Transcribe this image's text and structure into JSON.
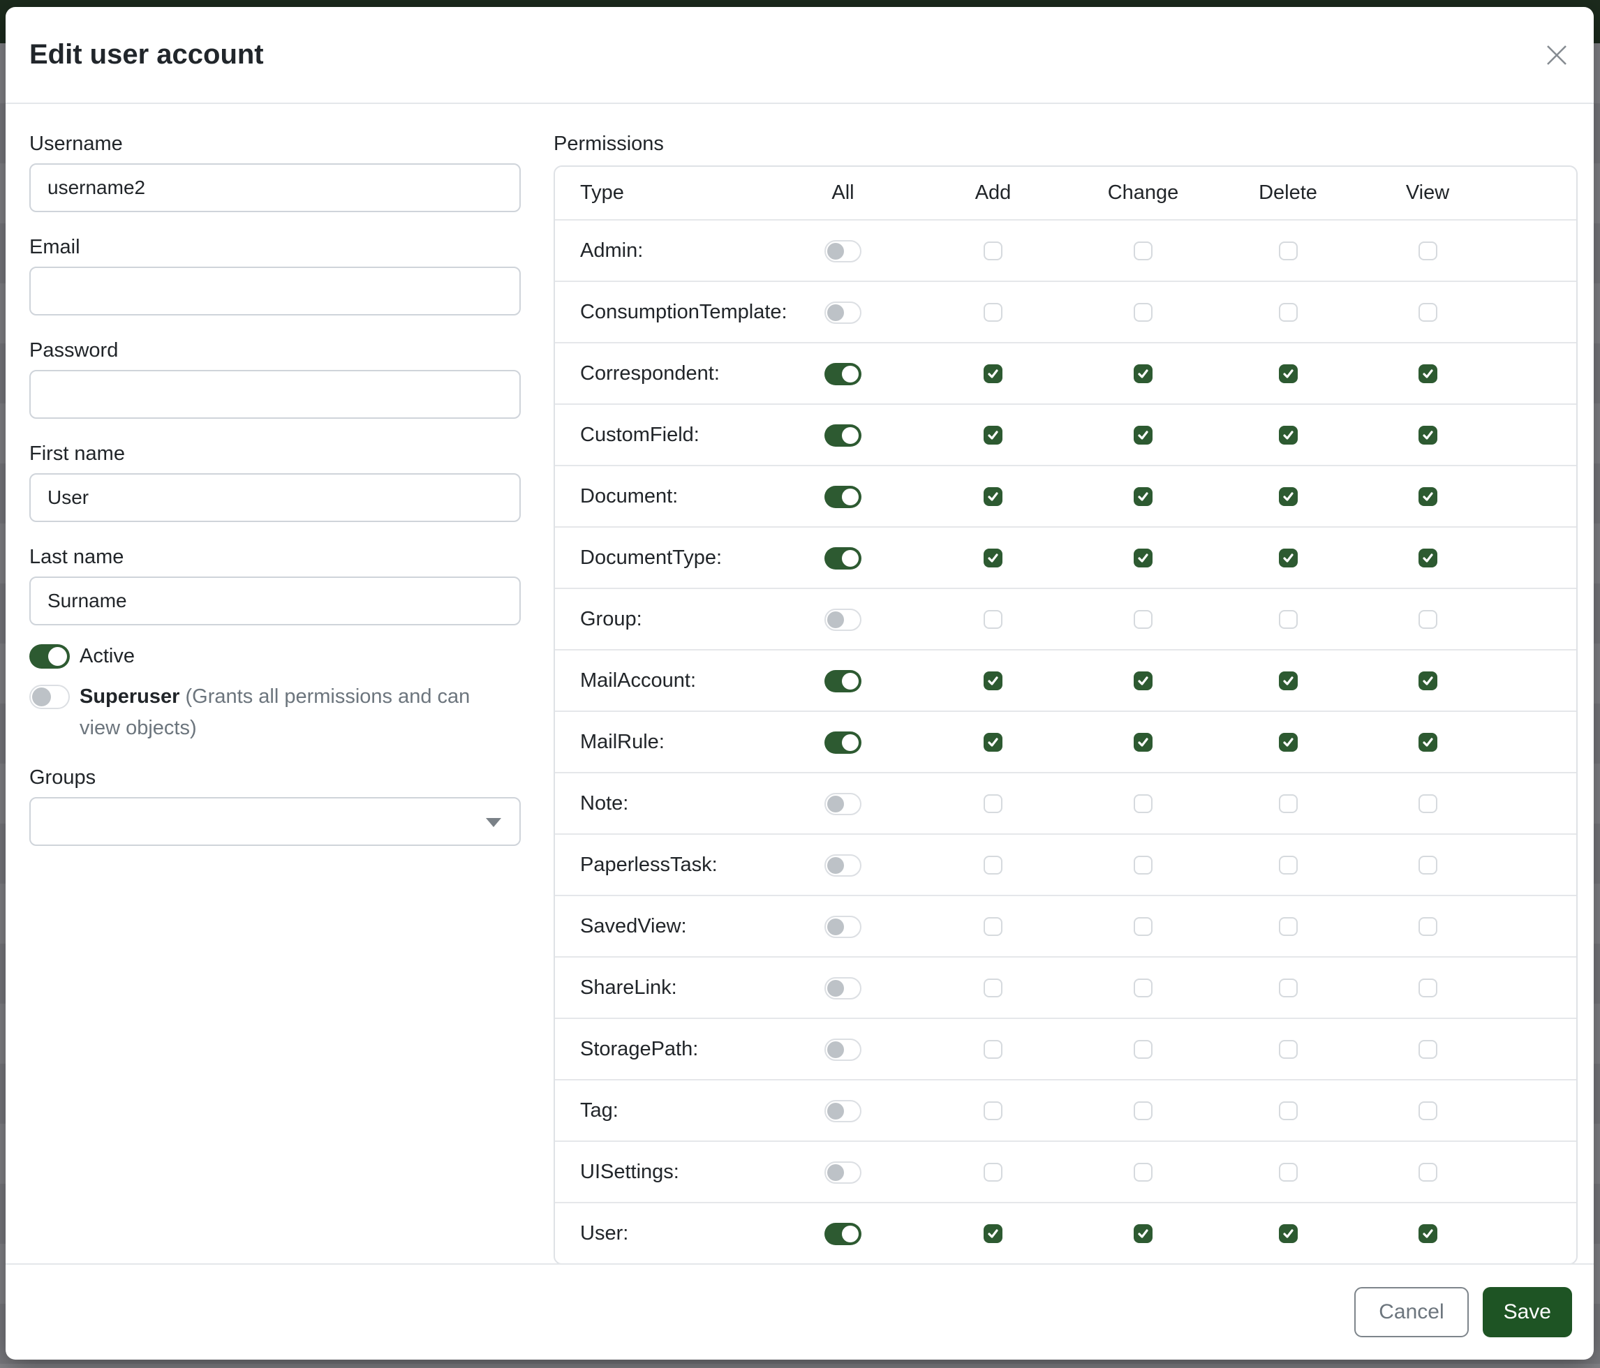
{
  "modal": {
    "title": "Edit user account"
  },
  "form": {
    "username": {
      "label": "Username",
      "value": "username2"
    },
    "email": {
      "label": "Email",
      "value": ""
    },
    "password": {
      "label": "Password",
      "value": ""
    },
    "first_name": {
      "label": "First name",
      "value": "User"
    },
    "last_name": {
      "label": "Last name",
      "value": "Surname"
    },
    "active": {
      "label": "Active",
      "enabled": true
    },
    "superuser": {
      "label": "Superuser",
      "hint": "(Grants all permissions and can view objects)",
      "enabled": false
    },
    "groups": {
      "label": "Groups",
      "value": ""
    }
  },
  "permissions": {
    "label": "Permissions",
    "columns": [
      "Type",
      "All",
      "Add",
      "Change",
      "Delete",
      "View"
    ],
    "rows": [
      {
        "type": "Admin:",
        "all": false,
        "add": false,
        "change": false,
        "delete": false,
        "view": false
      },
      {
        "type": "ConsumptionTemplate:",
        "all": false,
        "add": false,
        "change": false,
        "delete": false,
        "view": false
      },
      {
        "type": "Correspondent:",
        "all": true,
        "add": true,
        "change": true,
        "delete": true,
        "view": true
      },
      {
        "type": "CustomField:",
        "all": true,
        "add": true,
        "change": true,
        "delete": true,
        "view": true
      },
      {
        "type": "Document:",
        "all": true,
        "add": true,
        "change": true,
        "delete": true,
        "view": true
      },
      {
        "type": "DocumentType:",
        "all": true,
        "add": true,
        "change": true,
        "delete": true,
        "view": true
      },
      {
        "type": "Group:",
        "all": false,
        "add": false,
        "change": false,
        "delete": false,
        "view": false
      },
      {
        "type": "MailAccount:",
        "all": true,
        "add": true,
        "change": true,
        "delete": true,
        "view": true
      },
      {
        "type": "MailRule:",
        "all": true,
        "add": true,
        "change": true,
        "delete": true,
        "view": true
      },
      {
        "type": "Note:",
        "all": false,
        "add": false,
        "change": false,
        "delete": false,
        "view": false
      },
      {
        "type": "PaperlessTask:",
        "all": false,
        "add": false,
        "change": false,
        "delete": false,
        "view": false
      },
      {
        "type": "SavedView:",
        "all": false,
        "add": false,
        "change": false,
        "delete": false,
        "view": false
      },
      {
        "type": "ShareLink:",
        "all": false,
        "add": false,
        "change": false,
        "delete": false,
        "view": false
      },
      {
        "type": "StoragePath:",
        "all": false,
        "add": false,
        "change": false,
        "delete": false,
        "view": false
      },
      {
        "type": "Tag:",
        "all": false,
        "add": false,
        "change": false,
        "delete": false,
        "view": false
      },
      {
        "type": "UISettings:",
        "all": false,
        "add": false,
        "change": false,
        "delete": false,
        "view": false
      },
      {
        "type": "User:",
        "all": true,
        "add": true,
        "change": true,
        "delete": true,
        "view": true
      }
    ]
  },
  "footer": {
    "cancel_label": "Cancel",
    "save_label": "Save"
  },
  "colors": {
    "accent_green": "#2d5a31",
    "save_green": "#1e5424",
    "navbar_green": "#1c2b1d",
    "backdrop_grey": "#808084",
    "border_grey": "#dfe2e6",
    "muted_text": "#6c757d"
  }
}
